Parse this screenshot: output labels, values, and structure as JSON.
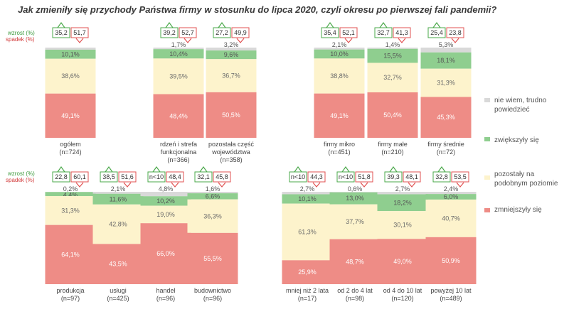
{
  "chart_data": {
    "type": "stacked-bar-100",
    "title": "Jak zmieniły się przychody Państwa firmy w stosunku do lipca 2020, czyli okresu po pierwszej fali pandemii?",
    "badge_labels": {
      "growth": "wzrost (%)",
      "decline": "spadek (%)"
    },
    "series": [
      {
        "name": "nie wiem, trudno powiedzieć",
        "color": "#d9d9d9"
      },
      {
        "name": "zwiększyły się",
        "color": "#8fce8f"
      },
      {
        "name": "pozostały na podobnym poziomie",
        "color": "#fdf3cc"
      },
      {
        "name": "zmniejszyły się",
        "color": "#ee8c86"
      }
    ],
    "legend": [
      "nie wiem, trudno powiedzieć",
      "zwiększyły się",
      "pozostały na podobnym poziomie",
      "zmniejszyły się"
    ],
    "groups": [
      {
        "name": "top-left",
        "bars": [
          {
            "label": [
              "ogółem",
              "(n=724)"
            ],
            "wzrost": "35,2",
            "spadek": "51,7",
            "values": [
              2.3,
              10.1,
              38.6,
              49.1
            ],
            "labels": [
              "",
              "10,1%",
              "38,6%",
              "49,1%"
            ]
          }
        ]
      },
      {
        "name": "top-middle",
        "bars": [
          {
            "label": [
              "rdzeń i strefa",
              "funkcjonalna",
              "(n=366)"
            ],
            "wzrost": "39,2",
            "spadek": "52,7",
            "values": [
              1.7,
              10.4,
              39.5,
              48.4
            ],
            "labels": [
              "1,7%",
              "10,4%",
              "39,5%",
              "48,4%"
            ]
          },
          {
            "label": [
              "pozostała część",
              "województwa",
              "(n=358)"
            ],
            "wzrost": "27,2",
            "spadek": "49,9",
            "values": [
              3.2,
              9.6,
              36.7,
              50.5
            ],
            "labels": [
              "3,2%",
              "9,6%",
              "36,7%",
              "50,5%"
            ]
          }
        ]
      },
      {
        "name": "top-right",
        "bars": [
          {
            "label": [
              "firmy mikro",
              "(n=451)"
            ],
            "wzrost": "35,4",
            "spadek": "52,1",
            "values": [
              2.1,
              10.0,
              38.8,
              49.1
            ],
            "labels": [
              "2,1%",
              "10,0%",
              "38,8%",
              "49,1%"
            ]
          },
          {
            "label": [
              "firmy małe",
              "(n=210)"
            ],
            "wzrost": "32,7",
            "spadek": "41,3",
            "values": [
              1.4,
              15.5,
              32.7,
              50.4
            ],
            "labels": [
              "1,4%",
              "15,5%",
              "32,7%",
              "50,4%"
            ]
          },
          {
            "label": [
              "firmy średnie",
              "(n=72)"
            ],
            "wzrost": "25,4",
            "spadek": "23,8",
            "values": [
              5.3,
              18.1,
              31.3,
              45.3
            ],
            "labels": [
              "5,3%",
              "18,1%",
              "31,3%",
              "45,3%"
            ]
          }
        ]
      },
      {
        "name": "bottom-left",
        "bars": [
          {
            "label": [
              "produkcja",
              "(n=97)"
            ],
            "wzrost": "22,8",
            "spadek": "60,1",
            "values": [
              0.2,
              4.4,
              31.3,
              64.1
            ],
            "labels": [
              "0,2%",
              "4,4%",
              "31,3%",
              "64,1%"
            ]
          },
          {
            "label": [
              "usługi",
              "(n=425)"
            ],
            "wzrost": "38,5",
            "spadek": "51,6",
            "values": [
              2.1,
              11.6,
              42.8,
              43.5
            ],
            "labels": [
              "2,1%",
              "11,6%",
              "42,8%",
              "43,5%"
            ]
          },
          {
            "label": [
              "handel",
              "(n=96)"
            ],
            "wzrost": "n<10",
            "spadek": "48,4",
            "values": [
              4.8,
              10.2,
              19.0,
              66.0
            ],
            "labels": [
              "4,8%",
              "10,2%",
              "19,0%",
              "66,0%"
            ]
          },
          {
            "label": [
              "budownictwo",
              "(n=96)"
            ],
            "wzrost": "32,1",
            "spadek": "45,8",
            "values": [
              1.6,
              6.6,
              36.3,
              55.5
            ],
            "labels": [
              "1,6%",
              "6,6%",
              "36,3%",
              "55,5%"
            ]
          }
        ]
      },
      {
        "name": "bottom-right",
        "bars": [
          {
            "label": [
              "mniej niż 2 lata",
              "(n=17)"
            ],
            "wzrost": "n<10",
            "spadek": "44,3",
            "values": [
              2.7,
              10.1,
              61.3,
              25.9
            ],
            "labels": [
              "2,7%",
              "10,1%",
              "61,3%",
              "25,9%"
            ]
          },
          {
            "label": [
              "od 2 do 4 lat",
              "(n=98)"
            ],
            "wzrost": "n<10",
            "spadek": "51,8",
            "values": [
              0.6,
              13.0,
              37.7,
              48.7
            ],
            "labels": [
              "0,6%",
              "13,0%",
              "37,7%",
              "48,7%"
            ]
          },
          {
            "label": [
              "od 4 do 10 lat",
              "(n=120)"
            ],
            "wzrost": "39,3",
            "spadek": "48,1",
            "values": [
              2.7,
              18.2,
              30.1,
              49.0
            ],
            "labels": [
              "2,7%",
              "18,2%",
              "30,1%",
              "49,0%"
            ]
          },
          {
            "label": [
              "powyżej 10 lat",
              "(n=489)"
            ],
            "wzrost": "32,8",
            "spadek": "53,5",
            "values": [
              2.4,
              6.0,
              40.7,
              50.9
            ],
            "labels": [
              "2,4%",
              "6,0%",
              "40,7%",
              "50,9%"
            ]
          }
        ]
      }
    ]
  }
}
